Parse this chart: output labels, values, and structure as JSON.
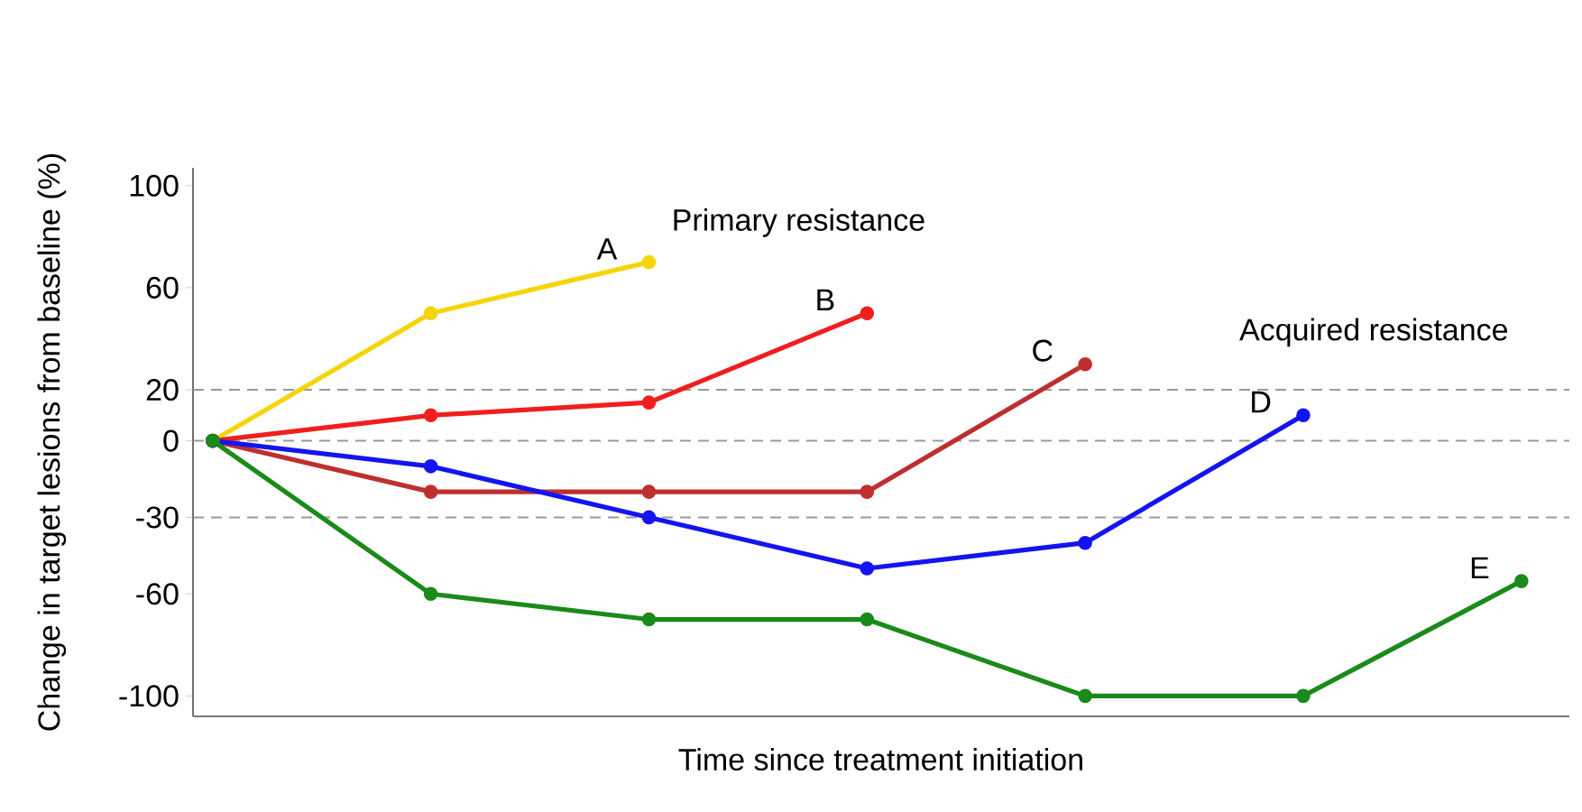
{
  "chart_data": {
    "type": "line",
    "xlabel": "Time since treatment initiation",
    "ylabel": "Change in target lesions from baseline (%)",
    "categories": [
      null,
      null,
      null,
      null,
      null,
      null,
      null
    ],
    "series": [
      {
        "name": "A",
        "color": "#f5d50a",
        "values": [
          0,
          50,
          70,
          null,
          null,
          null,
          null
        ]
      },
      {
        "name": "B",
        "color": "#f01e1e",
        "values": [
          0,
          10,
          15,
          50,
          null,
          null,
          null
        ]
      },
      {
        "name": "C",
        "color": "#bf2f2f",
        "values": [
          0,
          -20,
          -20,
          -20,
          30,
          null,
          null
        ]
      },
      {
        "name": "D",
        "color": "#1414f0",
        "values": [
          0,
          -10,
          -30,
          -50,
          -40,
          10,
          null
        ]
      },
      {
        "name": "E",
        "color": "#1a8a1a",
        "values": [
          0,
          -60,
          -70,
          -70,
          -100,
          -100,
          -55
        ]
      }
    ],
    "ylim": [
      -108,
      107
    ],
    "yticks": [
      -100,
      -60,
      -30,
      0,
      20,
      60,
      100
    ],
    "ref_lines": [
      {
        "axis": "y",
        "value": 20,
        "color": "#9a9a9a",
        "line_style": "dashed"
      },
      {
        "axis": "y",
        "value": 0,
        "color": "#9a9a9a",
        "line_style": "dashed"
      },
      {
        "axis": "y",
        "value": -30,
        "color": "#9a9a9a",
        "line_style": "dashed"
      }
    ],
    "annotations": [
      "Primary resistance",
      "Acquired resistance"
    ],
    "marker": "circle",
    "line_style": "solid",
    "grid": false,
    "legend": false
  }
}
